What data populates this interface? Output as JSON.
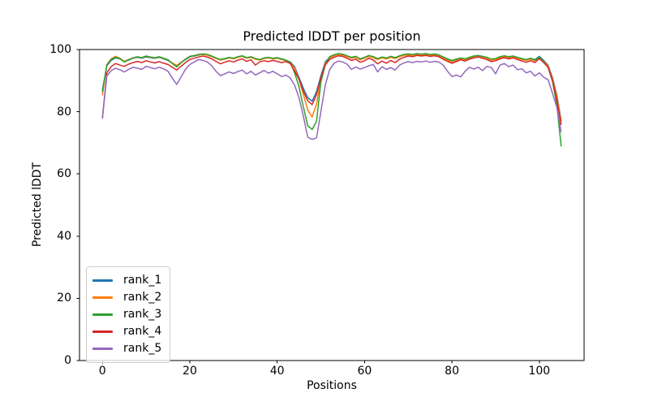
{
  "chart_data": {
    "type": "line",
    "title": "Predicted lDDT per position",
    "xlabel": "Positions",
    "ylabel": "Predicted lDDT",
    "xlim": [
      -5.25,
      110.25
    ],
    "ylim": [
      0,
      100
    ],
    "xticks": [
      0,
      20,
      40,
      60,
      80,
      100
    ],
    "yticks": [
      0,
      20,
      40,
      60,
      80,
      100
    ],
    "grid": false,
    "legend_position": "lower left",
    "axis_color": "#000000",
    "background_color": "#ffffff",
    "x": [
      0,
      1,
      2,
      3,
      4,
      5,
      6,
      7,
      8,
      9,
      10,
      11,
      12,
      13,
      14,
      15,
      16,
      17,
      18,
      19,
      20,
      21,
      22,
      23,
      24,
      25,
      26,
      27,
      28,
      29,
      30,
      31,
      32,
      33,
      34,
      35,
      36,
      37,
      38,
      39,
      40,
      41,
      42,
      43,
      44,
      45,
      46,
      47,
      48,
      49,
      50,
      51,
      52,
      53,
      54,
      55,
      56,
      57,
      58,
      59,
      60,
      61,
      62,
      63,
      64,
      65,
      66,
      67,
      68,
      69,
      70,
      71,
      72,
      73,
      74,
      75,
      76,
      77,
      78,
      79,
      80,
      81,
      82,
      83,
      84,
      85,
      86,
      87,
      88,
      89,
      90,
      91,
      92,
      93,
      94,
      95,
      96,
      97,
      98,
      99,
      100,
      101,
      102,
      103,
      104,
      105
    ],
    "series": [
      {
        "name": "rank_1",
        "color": "#1f77b4",
        "values": [
          87.0,
          94.8,
          96.5,
          97.3,
          97.0,
          96.1,
          96.6,
          97.2,
          97.5,
          97.2,
          97.6,
          97.4,
          97.2,
          97.5,
          97.0,
          96.5,
          95.6,
          94.7,
          95.8,
          96.8,
          97.6,
          97.9,
          98.2,
          98.5,
          98.3,
          97.8,
          97.2,
          96.7,
          97.0,
          97.4,
          97.1,
          97.6,
          97.9,
          97.3,
          97.6,
          97.0,
          96.7,
          97.2,
          97.4,
          97.1,
          97.3,
          96.9,
          96.5,
          96.0,
          94.5,
          91.0,
          87.5,
          84.5,
          83.4,
          86.5,
          91.5,
          96.0,
          97.5,
          98.2,
          98.6,
          98.4,
          97.9,
          97.4,
          97.7,
          96.9,
          97.4,
          98.0,
          97.6,
          97.0,
          97.5,
          97.2,
          97.7,
          97.3,
          97.9,
          98.3,
          98.5,
          98.3,
          98.6,
          98.4,
          98.6,
          98.3,
          98.5,
          98.2,
          97.5,
          96.9,
          96.4,
          96.8,
          97.2,
          96.9,
          97.4,
          97.8,
          98.0,
          97.7,
          97.4,
          96.8,
          97.0,
          97.6,
          97.9,
          97.6,
          97.8,
          97.4,
          97.0,
          96.7,
          97.1,
          96.8,
          97.8,
          96.5,
          95.0,
          91.0,
          85.5,
          77.2
        ]
      },
      {
        "name": "rank_2",
        "color": "#ff7f0e",
        "values": [
          85.5,
          95.2,
          97.0,
          97.8,
          97.2,
          96.2,
          96.8,
          97.3,
          97.6,
          97.3,
          97.8,
          97.5,
          97.3,
          97.6,
          97.1,
          96.6,
          95.7,
          94.9,
          95.9,
          96.9,
          97.7,
          98.0,
          98.3,
          98.4,
          98.2,
          97.7,
          97.1,
          96.6,
          96.9,
          97.3,
          97.0,
          97.5,
          97.8,
          97.2,
          97.5,
          96.9,
          96.6,
          97.1,
          97.3,
          97.0,
          97.2,
          96.8,
          96.4,
          95.8,
          94.0,
          90.3,
          85.5,
          80.5,
          78.3,
          82.5,
          90.5,
          95.5,
          97.3,
          98.0,
          98.4,
          98.2,
          97.7,
          97.2,
          97.5,
          96.7,
          97.2,
          97.8,
          97.4,
          96.8,
          97.3,
          97.0,
          97.5,
          97.1,
          97.7,
          98.1,
          98.3,
          98.1,
          98.4,
          98.2,
          98.4,
          98.1,
          98.3,
          98.0,
          97.3,
          96.6,
          95.9,
          96.4,
          97.0,
          96.7,
          97.2,
          97.6,
          97.8,
          97.5,
          97.2,
          96.6,
          96.8,
          97.4,
          97.7,
          97.4,
          97.6,
          97.2,
          96.8,
          96.5,
          96.9,
          96.4,
          97.5,
          96.2,
          94.7,
          90.5,
          85.0,
          76.8
        ]
      },
      {
        "name": "rank_3",
        "color": "#2ca02c",
        "values": [
          86.5,
          95.0,
          96.8,
          97.5,
          97.1,
          96.0,
          96.7,
          97.3,
          97.7,
          97.4,
          97.9,
          97.6,
          97.4,
          97.7,
          97.2,
          96.7,
          95.5,
          94.4,
          95.7,
          96.9,
          97.8,
          98.1,
          98.4,
          98.6,
          98.4,
          97.9,
          97.3,
          96.8,
          97.1,
          97.5,
          97.2,
          97.7,
          98.0,
          97.4,
          97.7,
          97.1,
          96.8,
          97.3,
          97.5,
          97.2,
          97.4,
          97.0,
          96.6,
          95.9,
          92.5,
          88.0,
          81.5,
          75.5,
          74.3,
          77.0,
          89.5,
          95.0,
          97.7,
          98.3,
          98.7,
          98.5,
          98.0,
          97.5,
          97.8,
          97.0,
          97.5,
          98.1,
          97.7,
          97.1,
          97.6,
          97.3,
          97.8,
          97.4,
          98.0,
          98.4,
          98.6,
          98.4,
          98.7,
          98.5,
          98.7,
          98.4,
          98.6,
          98.3,
          97.6,
          97.0,
          96.5,
          96.9,
          97.3,
          97.0,
          97.5,
          97.9,
          98.1,
          97.8,
          97.5,
          96.9,
          97.1,
          97.7,
          98.0,
          97.7,
          97.9,
          97.5,
          97.1,
          96.8,
          97.2,
          96.6,
          97.6,
          96.0,
          94.2,
          89.8,
          82.5,
          69.0
        ]
      },
      {
        "name": "rank_4",
        "color": "#d62728",
        "values": [
          78.0,
          92.5,
          94.5,
          95.5,
          95.0,
          94.6,
          95.3,
          95.8,
          96.2,
          95.8,
          96.4,
          96.0,
          95.7,
          96.1,
          95.6,
          95.2,
          94.3,
          93.4,
          94.6,
          95.8,
          96.8,
          97.2,
          97.6,
          97.9,
          97.6,
          97.0,
          96.2,
          95.4,
          95.9,
          96.4,
          96.0,
          96.6,
          97.0,
          96.2,
          96.7,
          95.0,
          96.0,
          96.4,
          96.1,
          96.5,
          96.2,
          95.8,
          96.1,
          95.5,
          93.0,
          90.5,
          86.5,
          83.5,
          82.3,
          85.5,
          91.0,
          95.0,
          96.8,
          97.5,
          98.0,
          97.8,
          97.2,
          96.5,
          96.9,
          95.9,
          96.4,
          97.2,
          96.6,
          95.4,
          96.3,
          95.6,
          96.5,
          95.8,
          96.9,
          97.5,
          97.9,
          97.7,
          98.1,
          97.9,
          98.1,
          97.8,
          98.0,
          97.7,
          96.9,
          96.2,
          95.6,
          96.1,
          96.7,
          96.3,
          96.9,
          97.3,
          97.6,
          97.2,
          96.8,
          96.1,
          96.4,
          97.0,
          97.4,
          97.0,
          97.3,
          96.8,
          96.3,
          95.9,
          96.4,
          95.8,
          97.1,
          95.8,
          94.3,
          90.0,
          84.0,
          75.9
        ]
      },
      {
        "name": "rank_5",
        "color": "#9467bd",
        "values": [
          78.0,
          91.5,
          93.2,
          94.0,
          93.5,
          92.8,
          93.6,
          94.3,
          94.0,
          93.6,
          94.6,
          94.2,
          93.8,
          94.3,
          93.8,
          93.0,
          90.8,
          88.8,
          91.2,
          93.6,
          95.2,
          96.0,
          96.8,
          96.5,
          96.0,
          94.8,
          93.0,
          91.6,
          92.2,
          92.8,
          92.3,
          92.9,
          93.4,
          92.2,
          93.0,
          91.8,
          92.5,
          93.3,
          92.4,
          93.0,
          92.2,
          91.3,
          91.8,
          90.8,
          88.5,
          84.5,
          78.5,
          71.8,
          71.1,
          71.6,
          80.0,
          88.5,
          93.5,
          95.6,
          96.3,
          96.0,
          95.3,
          93.6,
          94.4,
          93.7,
          94.2,
          94.8,
          95.2,
          92.8,
          94.5,
          93.6,
          94.2,
          93.4,
          95.0,
          95.7,
          96.1,
          95.8,
          96.2,
          96.0,
          96.3,
          95.9,
          96.2,
          96.0,
          95.0,
          93.0,
          91.3,
          91.8,
          91.2,
          93.0,
          94.3,
          93.7,
          94.3,
          93.2,
          94.6,
          94.2,
          92.2,
          95.0,
          95.5,
          94.5,
          95.0,
          93.5,
          93.8,
          92.5,
          93.0,
          91.5,
          92.5,
          91.1,
          90.3,
          86.0,
          81.5,
          73.6
        ]
      }
    ]
  }
}
